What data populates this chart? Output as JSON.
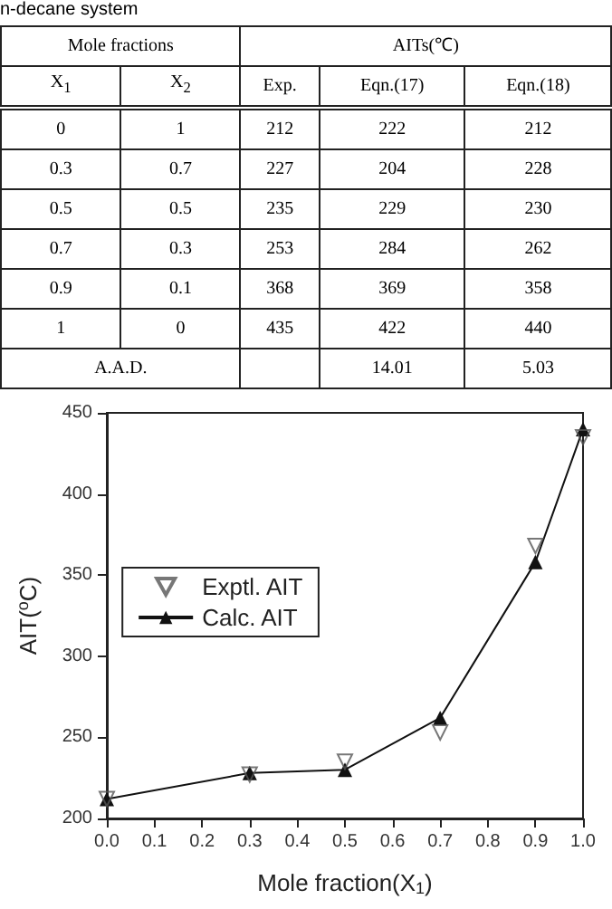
{
  "chart_data": [
    {
      "type": "other",
      "title": "n-decane system",
      "annotations": [
        "Mole fractions",
        "AITs(℃)"
      ],
      "categories": [
        "X$_{1}$",
        "X$_{2}$",
        "Exp.",
        "Eqn.(17)",
        "Eqn.(18)"
      ],
      "cell_labels": [
        [
          "0",
          "1",
          "212",
          "222",
          "212"
        ],
        [
          "0.3",
          "0.7",
          "227",
          "204",
          "228"
        ],
        [
          "0.5",
          "0.5",
          "235",
          "229",
          "230"
        ],
        [
          "0.7",
          "0.3",
          "253",
          "284",
          "262"
        ],
        [
          "0.9",
          "0.1",
          "368",
          "369",
          "358"
        ],
        [
          "1",
          "0",
          "435",
          "422",
          "440"
        ],
        [
          "A.A.D.",
          null,
          null,
          "14.01",
          "5.03"
        ]
      ]
    },
    {
      "type": "line",
      "xlabel": "Mole fraction(X$_{1}$)",
      "ylabel": "AIT($^{o}$C)",
      "legend": "left",
      "grid": false,
      "x": [
        0,
        0.3,
        0.5,
        0.7,
        0.9,
        1
      ],
      "xlim": [
        0,
        1
      ],
      "xticks": [
        {
          "value": 0,
          "label": "0.0"
        },
        {
          "value": 0.1,
          "label": "0.1"
        },
        {
          "value": 0.2,
          "label": "0.2"
        },
        {
          "value": 0.3,
          "label": "0.3"
        },
        {
          "value": 0.4,
          "label": "0.4"
        },
        {
          "value": 0.5,
          "label": "0.5"
        },
        {
          "value": 0.6,
          "label": "0.6"
        },
        {
          "value": 0.7,
          "label": "0.7"
        },
        {
          "value": 0.8,
          "label": "0.8"
        },
        {
          "value": 0.9,
          "label": "0.9"
        },
        {
          "value": 1,
          "label": "1.0"
        }
      ],
      "ylim": [
        200,
        450
      ],
      "yticks": [
        200,
        250,
        300,
        350,
        400,
        450
      ],
      "marker": "triangle",
      "series": [
        {
          "name": "Exptl. AIT",
          "type": "scatter",
          "color": "#555555",
          "values": [
            212,
            227,
            235,
            253,
            368,
            435
          ]
        },
        {
          "name": "Calc. AIT",
          "type": "line",
          "color": "#111111",
          "values": [
            212,
            228,
            230,
            262,
            358,
            440
          ]
        }
      ]
    }
  ]
}
